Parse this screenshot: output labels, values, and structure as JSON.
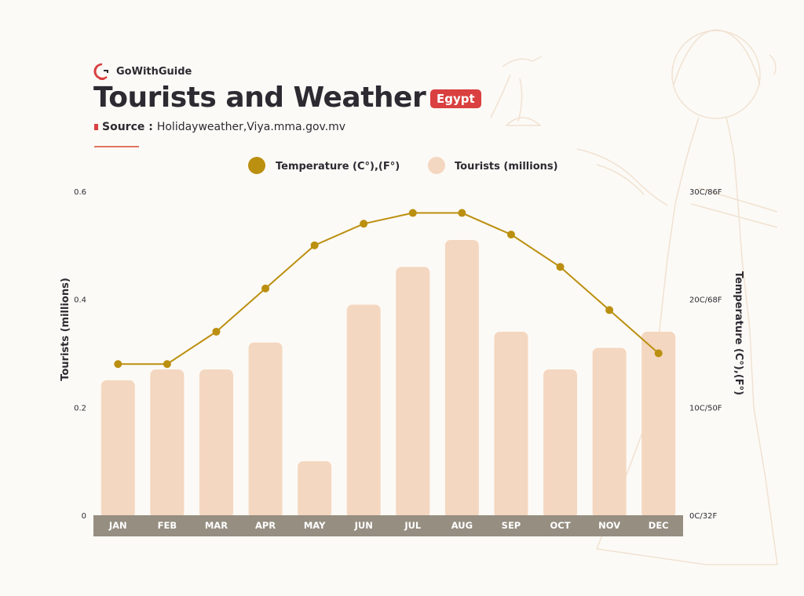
{
  "brand": {
    "name": "GoWithGuide"
  },
  "header": {
    "title": "Tourists and Weather",
    "badge": "Egypt",
    "source_label": "Source :",
    "source_value": "Holidayweather,Viya.mma.gov.mv"
  },
  "colors": {
    "bar": "#f4d7c0",
    "line": "#bb8f0f",
    "axis_band": "#958e81",
    "accent": "#d9403f"
  },
  "chart_data": {
    "type": "bar+line",
    "categories": [
      "JAN",
      "FEB",
      "MAR",
      "APR",
      "MAY",
      "JUN",
      "JUL",
      "AUG",
      "SEP",
      "OCT",
      "NOV",
      "DEC"
    ],
    "series": [
      {
        "name": "Tourists (millions)",
        "type": "bar",
        "axis": "left",
        "values": [
          0.25,
          0.27,
          0.27,
          0.32,
          0.1,
          0.39,
          0.46,
          0.51,
          0.34,
          0.27,
          0.31,
          0.34
        ]
      },
      {
        "name": "Temperature (C°),(F°)",
        "type": "line",
        "axis": "right",
        "values": [
          14,
          14,
          17,
          21,
          25,
          27,
          28,
          28,
          26,
          23,
          19,
          15
        ]
      }
    ],
    "ylabel_left": "Tourists (millions)",
    "ylim_left": [
      0,
      0.6
    ],
    "yticks_left": [
      "0",
      "0.2",
      "0.4",
      "0.6"
    ],
    "ylabel_right": "Temperature (C°),(F°)",
    "ylim_right": [
      0,
      30
    ],
    "yticks_right": [
      "0C/32F",
      "10C/50F",
      "20C/68F",
      "30C/86F"
    ],
    "grid": false,
    "legend_position": "top"
  }
}
